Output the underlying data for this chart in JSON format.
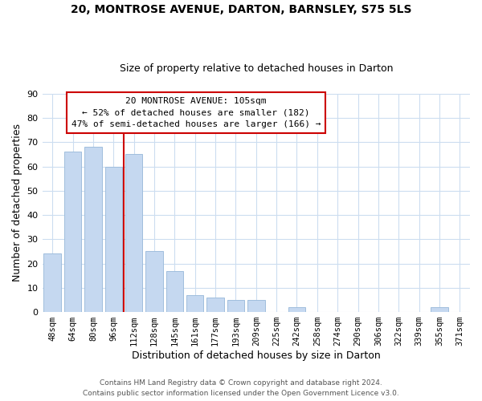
{
  "title1": "20, MONTROSE AVENUE, DARTON, BARNSLEY, S75 5LS",
  "title2": "Size of property relative to detached houses in Darton",
  "xlabel": "Distribution of detached houses by size in Darton",
  "ylabel": "Number of detached properties",
  "bar_labels": [
    "48sqm",
    "64sqm",
    "80sqm",
    "96sqm",
    "112sqm",
    "128sqm",
    "145sqm",
    "161sqm",
    "177sqm",
    "193sqm",
    "209sqm",
    "225sqm",
    "242sqm",
    "258sqm",
    "274sqm",
    "290sqm",
    "306sqm",
    "322sqm",
    "339sqm",
    "355sqm",
    "371sqm"
  ],
  "bar_values": [
    24,
    66,
    68,
    60,
    65,
    25,
    17,
    7,
    6,
    5,
    5,
    0,
    2,
    0,
    0,
    0,
    0,
    0,
    0,
    2,
    0
  ],
  "bar_color": "#c5d8f0",
  "bar_edge_color": "#a0bedd",
  "vline_color": "#cc0000",
  "ylim": [
    0,
    90
  ],
  "yticks": [
    0,
    10,
    20,
    30,
    40,
    50,
    60,
    70,
    80,
    90
  ],
  "annotation_title": "20 MONTROSE AVENUE: 105sqm",
  "annotation_line1": "← 52% of detached houses are smaller (182)",
  "annotation_line2": "47% of semi-detached houses are larger (166) →",
  "annotation_box_color": "#ffffff",
  "annotation_box_edge": "#cc0000",
  "footer1": "Contains HM Land Registry data © Crown copyright and database right 2024.",
  "footer2": "Contains public sector information licensed under the Open Government Licence v3.0.",
  "background_color": "#ffffff",
  "grid_color": "#ccddf0"
}
